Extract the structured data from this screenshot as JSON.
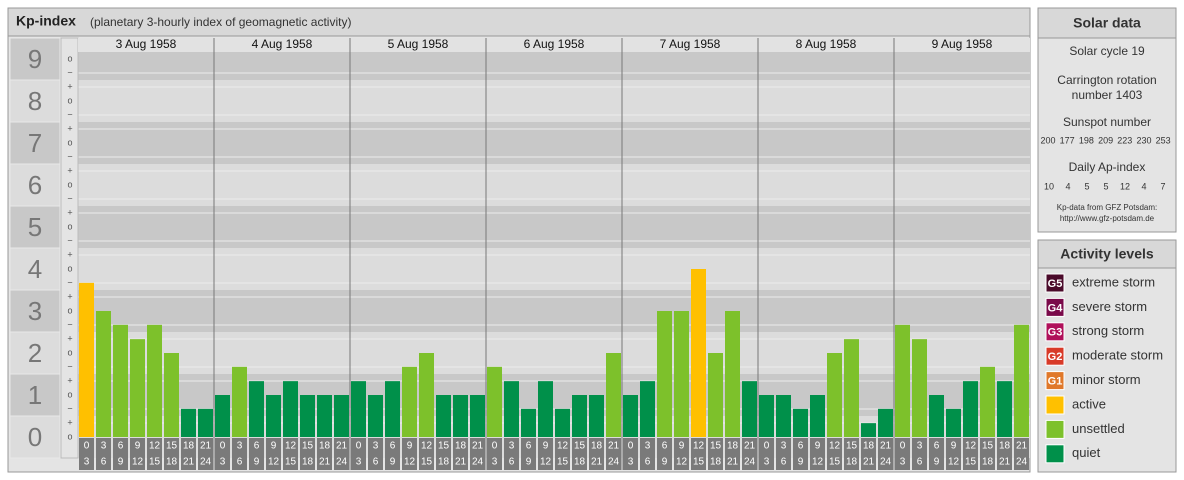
{
  "chart_data": {
    "type": "bar",
    "title": "Kp-index",
    "subtitle": "(planetary 3-hourly index of geomagnetic activity)",
    "days": [
      "3 Aug 1958",
      "4 Aug 1958",
      "5 Aug 1958",
      "6 Aug 1958",
      "7 Aug 1958",
      "8 Aug 1958",
      "9 Aug 1958"
    ],
    "hours": [
      [
        "0",
        "3"
      ],
      [
        "3",
        "6"
      ],
      [
        "6",
        "9"
      ],
      [
        "9",
        "12"
      ],
      [
        "12",
        "15"
      ],
      [
        "15",
        "18"
      ],
      [
        "18",
        "21"
      ],
      [
        "21",
        "24"
      ]
    ],
    "values": [
      [
        3.67,
        3,
        2.67,
        2.33,
        2.67,
        2,
        0.67,
        0.67
      ],
      [
        1,
        1.67,
        1.33,
        1,
        1.33,
        1,
        1,
        1
      ],
      [
        1.33,
        1,
        1.33,
        1.67,
        2,
        1,
        1,
        1
      ],
      [
        1.67,
        1.33,
        0.67,
        1.33,
        0.67,
        1,
        1,
        2
      ],
      [
        1,
        1.33,
        3,
        3,
        4,
        2,
        3,
        1.33
      ],
      [
        1,
        1,
        0.67,
        1,
        2,
        2.33,
        0.33,
        0.67
      ],
      [
        2.67,
        2.33,
        1,
        0.67,
        1.33,
        1.67,
        1.33,
        2.67
      ]
    ],
    "colors": [
      [
        "#ffc000",
        "#7dc12b",
        "#7dc12b",
        "#7dc12b",
        "#7dc12b",
        "#7dc12b",
        "#00904a",
        "#00904a"
      ],
      [
        "#00904a",
        "#7dc12b",
        "#00904a",
        "#00904a",
        "#00904a",
        "#00904a",
        "#00904a",
        "#00904a"
      ],
      [
        "#00904a",
        "#00904a",
        "#00904a",
        "#7dc12b",
        "#7dc12b",
        "#00904a",
        "#00904a",
        "#00904a"
      ],
      [
        "#7dc12b",
        "#00904a",
        "#00904a",
        "#00904a",
        "#00904a",
        "#00904a",
        "#00904a",
        "#7dc12b"
      ],
      [
        "#00904a",
        "#00904a",
        "#7dc12b",
        "#7dc12b",
        "#ffc000",
        "#7dc12b",
        "#7dc12b",
        "#00904a"
      ],
      [
        "#00904a",
        "#00904a",
        "#00904a",
        "#00904a",
        "#7dc12b",
        "#7dc12b",
        "#00904a",
        "#00904a"
      ],
      [
        "#7dc12b",
        "#7dc12b",
        "#00904a",
        "#00904a",
        "#00904a",
        "#7dc12b",
        "#00904a",
        "#7dc12b"
      ]
    ],
    "ylim": [
      -0.5,
      9.5
    ],
    "yticks": [
      0,
      1,
      2,
      3,
      4,
      5,
      6,
      7,
      8,
      9
    ],
    "sublevels": [
      "−",
      "o",
      "+"
    ]
  },
  "solar_data": {
    "title": "Solar data",
    "solar_cycle": "Solar cycle 19",
    "carrington": [
      "Carrington rotation",
      "number 1403"
    ],
    "sunspot_title": "Sunspot number",
    "sunspot_numbers": [
      200,
      177,
      198,
      209,
      223,
      230,
      253
    ],
    "ap_title": "Daily Ap-index",
    "ap_values": [
      10,
      4,
      5,
      5,
      12,
      4,
      7
    ],
    "source": [
      "Kp-data from GFZ Potsdam:",
      "http://www.gfz-potsdam.de"
    ]
  },
  "activity_levels": {
    "title": "Activity levels",
    "items": [
      {
        "badge": "G5",
        "label": "extreme storm",
        "color": "#4a0a2a"
      },
      {
        "badge": "G4",
        "label": "severe storm",
        "color": "#7a0a4a"
      },
      {
        "badge": "G3",
        "label": "strong storm",
        "color": "#b0105a"
      },
      {
        "badge": "G2",
        "label": "moderate storm",
        "color": "#d83a28"
      },
      {
        "badge": "G1",
        "label": "minor storm",
        "color": "#e0782a"
      },
      {
        "label": "active",
        "color": "#ffc000"
      },
      {
        "label": "unsettled",
        "color": "#7dc12b"
      },
      {
        "label": "quiet",
        "color": "#00904a"
      }
    ]
  }
}
